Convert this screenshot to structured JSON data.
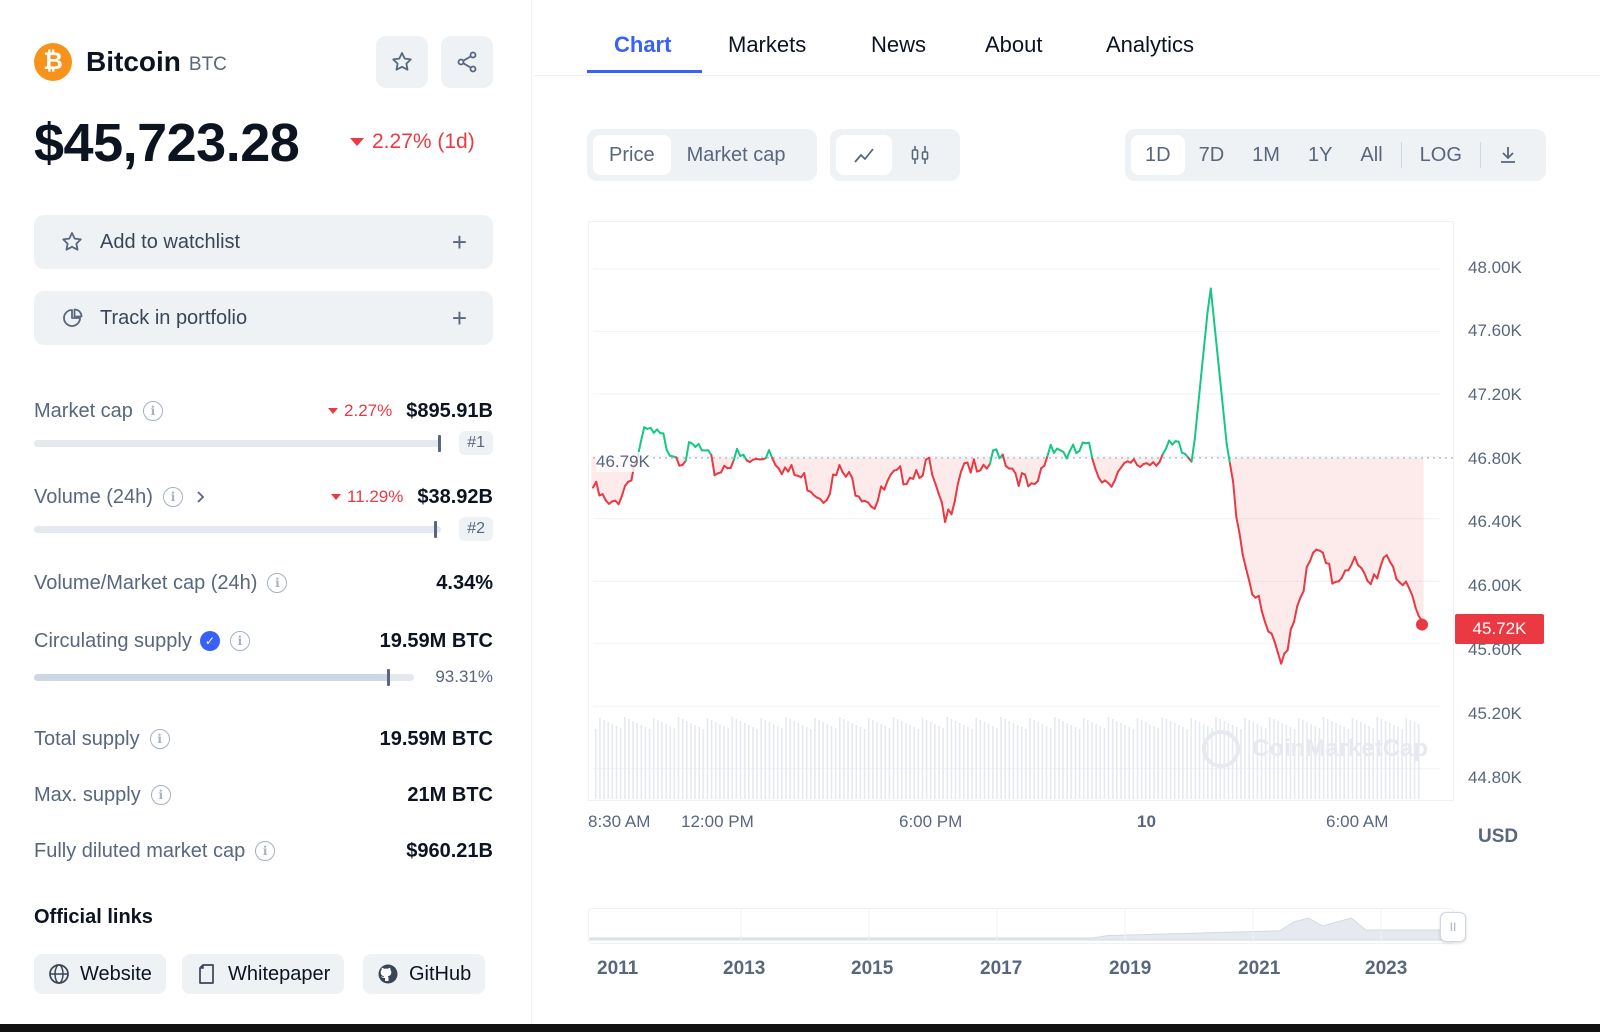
{
  "coin": {
    "name": "Bitcoin",
    "symbol": "BTC",
    "logo_glyph": "₿",
    "price": "$45,723.28",
    "change": "2.27% (1d)"
  },
  "actions": {
    "watchlist": "Add to watchlist",
    "portfolio": "Track in portfolio",
    "plus": "+"
  },
  "stats": {
    "market_cap": {
      "label": "Market cap",
      "change": "2.27%",
      "value": "$895.91B",
      "rank": "#1"
    },
    "volume": {
      "label": "Volume (24h)",
      "change": "11.29%",
      "value": "$38.92B",
      "rank": "#2"
    },
    "vol_mcap": {
      "label": "Volume/Market cap (24h)",
      "value": "4.34%"
    },
    "circulating": {
      "label": "Circulating supply",
      "value": "19.59M BTC",
      "percent": "93.31%",
      "fill": 0.9331
    },
    "total": {
      "label": "Total supply",
      "value": "19.59M BTC"
    },
    "max": {
      "label": "Max. supply",
      "value": "21M BTC"
    },
    "fdmc": {
      "label": "Fully diluted market cap",
      "value": "$960.21B"
    }
  },
  "links": {
    "title": "Official links",
    "website": "Website",
    "whitepaper": "Whitepaper",
    "github": "GitHub"
  },
  "tabs": [
    "Chart",
    "Markets",
    "News",
    "About",
    "Analytics"
  ],
  "toolbar": {
    "price": "Price",
    "market_cap": "Market cap",
    "ranges": [
      "1D",
      "7D",
      "1M",
      "1Y",
      "All"
    ],
    "log": "LOG"
  },
  "chart_data": {
    "type": "line",
    "currency": "USD",
    "reference_label": "46.79K",
    "reference_value": 46790,
    "current_label": "45.72K",
    "current_value": 45723,
    "y_ticks": [
      "48.00K",
      "47.60K",
      "47.20K",
      "46.80K",
      "46.40K",
      "46.00K",
      "45.60K",
      "45.20K",
      "44.80K"
    ],
    "ylim": [
      44600,
      48300
    ],
    "x_ticks": [
      "8:30 AM",
      "12:00 PM",
      "6:00 PM",
      "10",
      "6:00 AM"
    ],
    "watermark": "CoinMarketCap",
    "series_hint": [
      46600,
      46450,
      46650,
      46950,
      46900,
      46800,
      46850,
      46700,
      46800,
      46750,
      46850,
      46700,
      46650,
      46550,
      46700,
      46600,
      46500,
      46650,
      46700,
      46750,
      46350,
      46800,
      46650,
      46850,
      46700,
      46550,
      46900,
      46800,
      46850,
      46650,
      46700,
      46750,
      46800,
      46850,
      46780,
      47900,
      46800,
      46100,
      45750,
      45450,
      45900,
      46200,
      46000,
      46150,
      45950,
      46200,
      45950,
      45723
    ],
    "navigator_years": [
      "2011",
      "2013",
      "2015",
      "2017",
      "2019",
      "2021",
      "2023"
    ]
  }
}
